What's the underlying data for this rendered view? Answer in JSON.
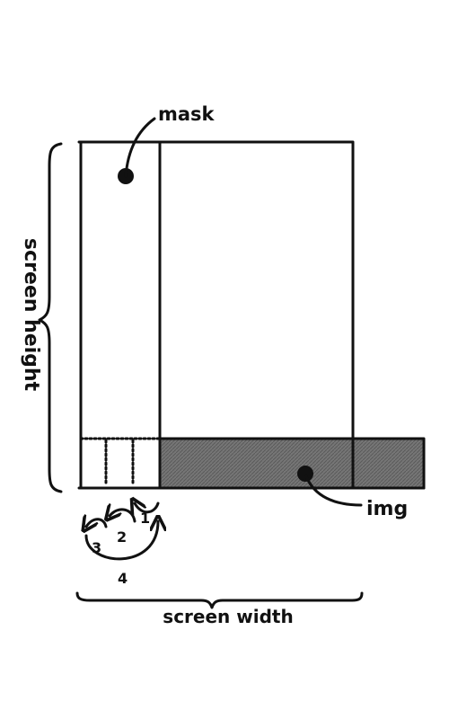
{
  "labels": {
    "mask": "mask",
    "img": "img",
    "screen_height": "screen height",
    "screen_width": "screen width"
  },
  "steps": [
    "1",
    "2",
    "3",
    "4"
  ],
  "colors": {
    "ink": "#111111",
    "img_fill": "#6e6e6e",
    "background": "#ffffff"
  }
}
